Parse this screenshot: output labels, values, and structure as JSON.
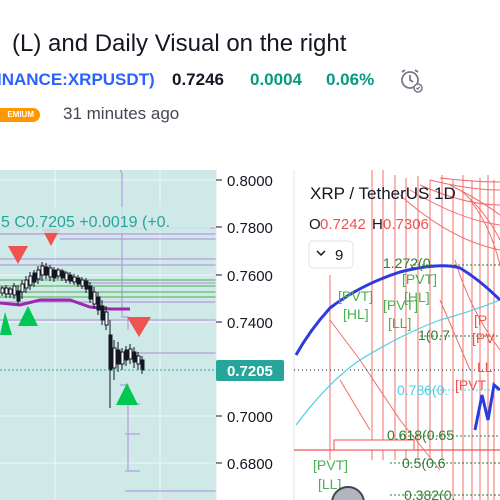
{
  "header": {
    "title": "(L) and Daily Visual on the right",
    "symbol": "INANCE:XRPUSDT)",
    "price": "0.7246",
    "change": "0.0004",
    "change_pct": "0.06%",
    "badge": "EMIUM",
    "posted_ago": "31 minutes ago"
  },
  "left_chart": {
    "ohlc_text": "5  C0.7205  +0.0019 (+0.",
    "price_axis": [
      "0.8000",
      "0.7800",
      "0.7600",
      "0.7400",
      "0.7200",
      "0.7000",
      "0.6800"
    ],
    "last_price": "0.7205"
  },
  "right_chart": {
    "symbol_title": "XRP / TetherUS  1D",
    "open_label": "O",
    "open_value": "0.7242",
    "high_label": "H",
    "high_value": "0.7306",
    "indicator_count": "9",
    "labels": {
      "fib_1272": "1.272(0.",
      "pvt_hl_1": "[PVT]",
      "hl_1": "[HL]",
      "pvt_ll_1": "[PVT]",
      "ll_1": "[LL]",
      "pvt_hl_2": "[PVT]",
      "hl_2": "[HL]",
      "fib_1": "1(0.7",
      "fib_0786": "0.786(0.",
      "fib_0618": "0.618(0.65",
      "fib_05": "0.5(0.6",
      "fib_0382": "0.382(0.",
      "pvt_ll_2": "[PVT]",
      "ll_2": "[LL]",
      "edge_pv1": "[P",
      "edge_pv2": "[PV",
      "edge_ll": "LL",
      "edge_pvt": "[PVT"
    }
  },
  "colors": {
    "brand_blue": "#2962ff",
    "up_green": "#089981",
    "badge_orange": "#ff9800",
    "price_tag": "#26a69a",
    "left_bg": "#cfe9e9",
    "ma_blue": "#2b3be0",
    "fib_green": "#2e7d32",
    "fib_cyan": "#4dd0e1",
    "pvt_green": "#4caf50",
    "signal_red": "#f44336"
  }
}
